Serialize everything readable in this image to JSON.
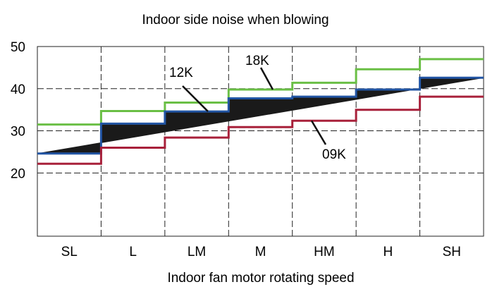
{
  "chart_data": {
    "type": "line",
    "title": "Indoor side noise when blowing",
    "xlabel": "Indoor fan motor rotating speed",
    "ylabel": "",
    "categories": [
      "SL",
      "L",
      "LM",
      "M",
      "HM",
      "H",
      "SH"
    ],
    "ylim": [
      5,
      50
    ],
    "yticks": [
      20,
      30,
      40,
      50
    ],
    "grid": true,
    "step": true,
    "series": [
      {
        "name": "18K",
        "color": "#6abf45",
        "values": [
          31.5,
          34.7,
          36.7,
          39.8,
          41.4,
          44.6,
          47.0
        ]
      },
      {
        "name": "12K",
        "color": "#2255a4",
        "values": [
          24.6,
          31.7,
          34.6,
          37.7,
          38.1,
          39.8,
          42.6
        ]
      },
      {
        "name": "09K",
        "color": "#a8203a",
        "values": [
          22.2,
          26.0,
          28.4,
          30.9,
          32.4,
          35.0,
          38.1
        ]
      }
    ],
    "band": {
      "from": [
        24.6,
        "SL"
      ],
      "to": [
        42.6,
        "SH"
      ],
      "color": "#1a1a1a"
    },
    "annotations": [
      {
        "text": "18K",
        "series": "18K"
      },
      {
        "text": "12K",
        "series": "12K"
      },
      {
        "text": "09K",
        "series": "09K"
      }
    ]
  }
}
